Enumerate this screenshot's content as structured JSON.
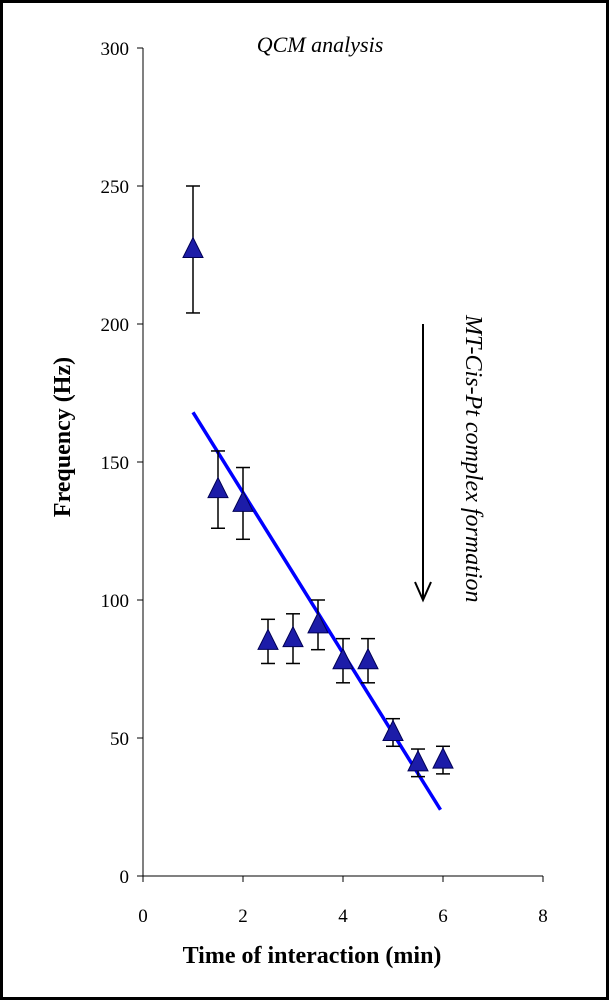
{
  "chart_data": {
    "type": "scatter",
    "title": "QCM analysis",
    "xlabel": "Time of interaction (min)",
    "ylabel": "Frequency (Hz)",
    "xlim": [
      0,
      8
    ],
    "ylim": [
      0,
      300
    ],
    "xticks": [
      0,
      2,
      4,
      6,
      8
    ],
    "yticks": [
      0,
      50,
      100,
      150,
      200,
      250,
      300
    ],
    "grid": false,
    "series": [
      {
        "points": [
          {
            "x": 1.0,
            "y": 227,
            "err": 23
          },
          {
            "x": 1.5,
            "y": 140,
            "err": 14
          },
          {
            "x": 2.0,
            "y": 135,
            "err": 13
          },
          {
            "x": 2.5,
            "y": 85,
            "err": 8
          },
          {
            "x": 3.0,
            "y": 86,
            "err": 9
          },
          {
            "x": 3.5,
            "y": 91,
            "err": 9
          },
          {
            "x": 4.0,
            "y": 78,
            "err": 8
          },
          {
            "x": 4.5,
            "y": 78,
            "err": 8
          },
          {
            "x": 5.0,
            "y": 52,
            "err": 5
          },
          {
            "x": 5.5,
            "y": 41,
            "err": 5
          },
          {
            "x": 6.0,
            "y": 42,
            "err": 5
          }
        ],
        "marker": "triangle",
        "color": "#1c1ca8"
      }
    ],
    "trendline": {
      "x": [
        1.0,
        5.95
      ],
      "y": [
        168,
        24
      ],
      "color": "#0000ff"
    },
    "annotation": {
      "text": "MT-Cis-Pt complex formation",
      "arrow_x": 5.6,
      "arrow_y": [
        200,
        100
      ]
    }
  }
}
